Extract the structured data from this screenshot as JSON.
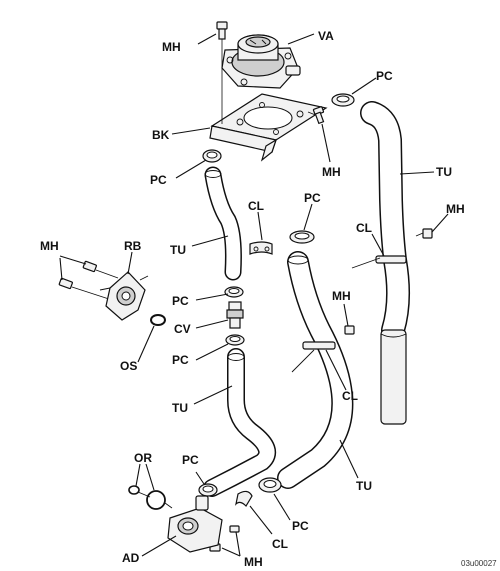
{
  "labels": {
    "mh_top": "MH",
    "va": "VA",
    "pc_top_right": "PC",
    "bk": "BK",
    "mh_mid": "MH",
    "pc_left_top": "PC",
    "tu_right": "TU",
    "cl_mid": "CL",
    "pc_mid": "PC",
    "mh_far_right": "MH",
    "cl_right": "CL",
    "mh_left": "MH",
    "rb": "RB",
    "tu_left": "TU",
    "pc_left_mid": "PC",
    "cv": "CV",
    "mh_center": "MH",
    "pc_left_low": "PC",
    "os": "OS",
    "cl_center": "CL",
    "tu_bottom_left": "TU",
    "tu_bottom_right": "TU",
    "or": "OR",
    "pc_bottom_left": "PC",
    "pc_bottom_right": "PC",
    "cl_bottom": "CL",
    "ad": "AD",
    "mh_bottom": "MH"
  },
  "figure_code": "03u00027"
}
